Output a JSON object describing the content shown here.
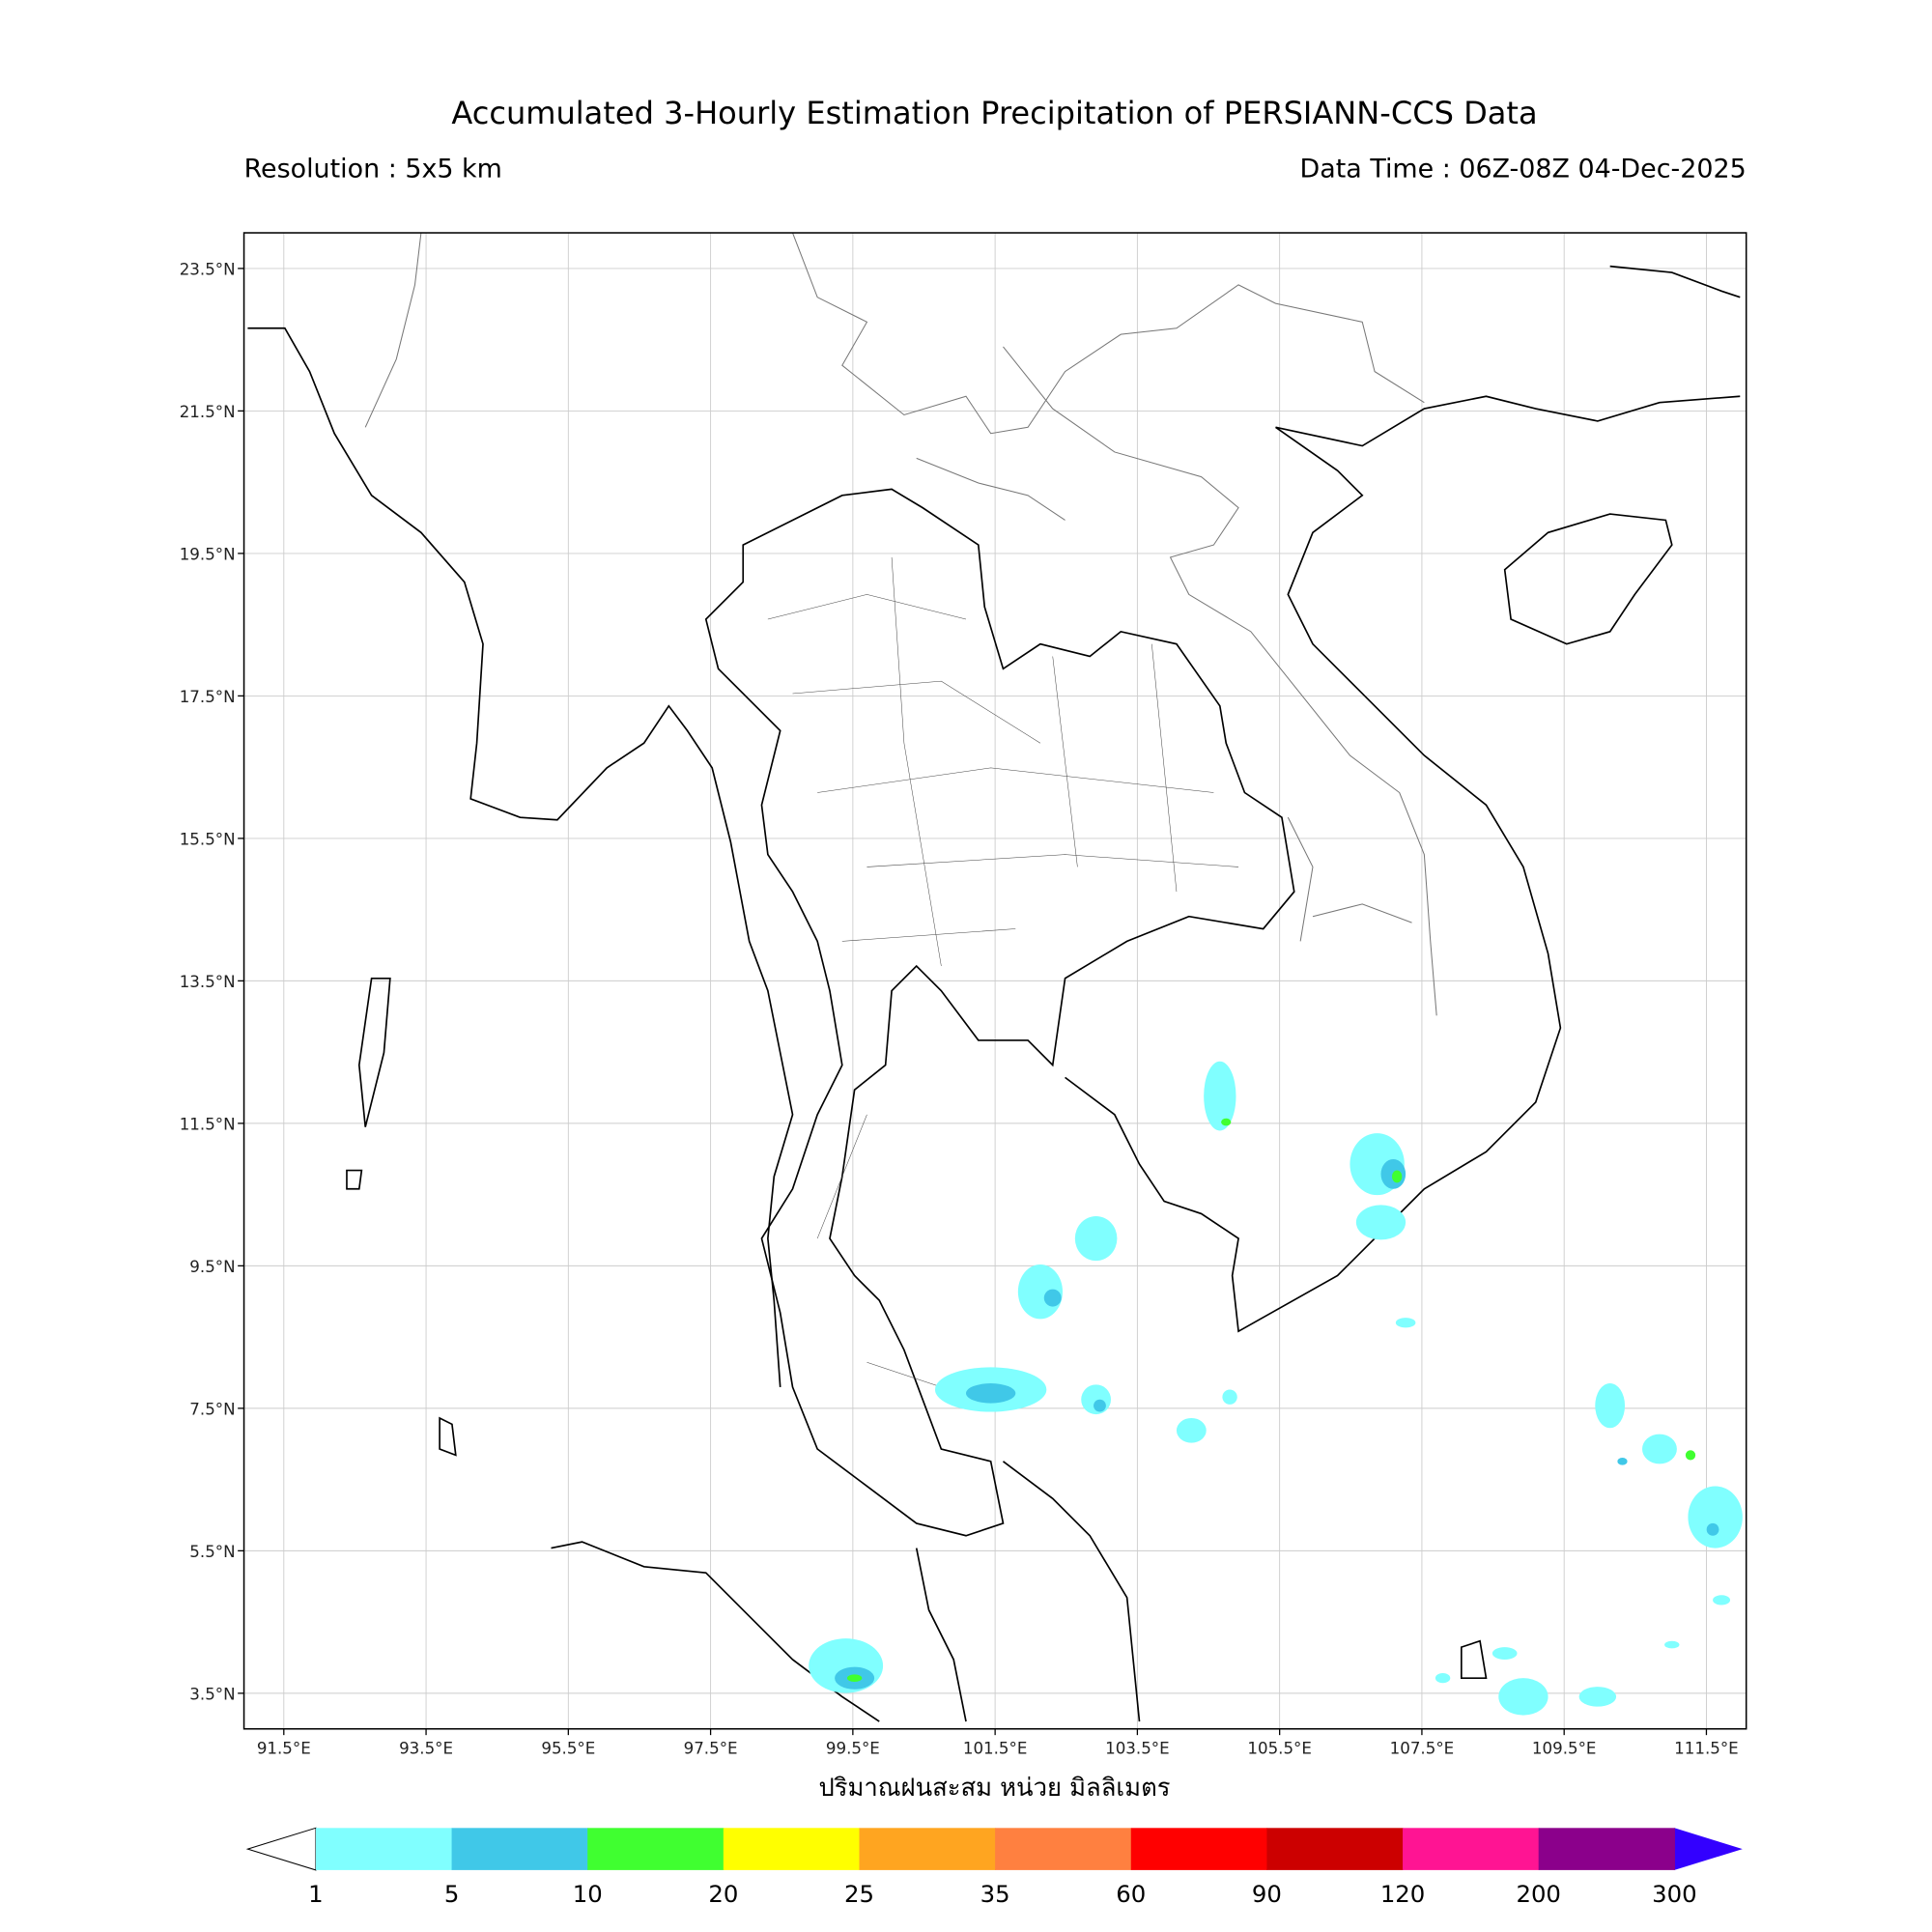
{
  "header": {
    "title": "Accumulated 3-Hourly Estimation Precipitation of PERSIANN-CCS Data",
    "resolution": "Resolution : 5x5 km",
    "data_time": "Data Time : 06Z-08Z 04-Dec-2025"
  },
  "map": {
    "xlim": [
      90.94,
      112.06
    ],
    "ylim": [
      3.0,
      24.0
    ],
    "grid": true,
    "xticks": [
      {
        "value": 91.5,
        "label": "91.5°E"
      },
      {
        "value": 93.5,
        "label": "93.5°E"
      },
      {
        "value": 95.5,
        "label": "95.5°E"
      },
      {
        "value": 97.5,
        "label": "97.5°E"
      },
      {
        "value": 99.5,
        "label": "99.5°E"
      },
      {
        "value": 101.5,
        "label": "101.5°E"
      },
      {
        "value": 103.5,
        "label": "103.5°E"
      },
      {
        "value": 105.5,
        "label": "105.5°E"
      },
      {
        "value": 107.5,
        "label": "107.5°E"
      },
      {
        "value": 109.5,
        "label": "109.5°E"
      },
      {
        "value": 111.5,
        "label": "111.5°E"
      }
    ],
    "yticks": [
      {
        "value": 3.5,
        "label": "3.5°N"
      },
      {
        "value": 5.5,
        "label": "5.5°N"
      },
      {
        "value": 7.5,
        "label": "7.5°N"
      },
      {
        "value": 9.5,
        "label": "9.5°N"
      },
      {
        "value": 11.5,
        "label": "11.5°N"
      },
      {
        "value": 13.5,
        "label": "13.5°N"
      },
      {
        "value": 15.5,
        "label": "15.5°N"
      },
      {
        "value": 17.5,
        "label": "17.5°N"
      },
      {
        "value": 19.5,
        "label": "19.5°N"
      },
      {
        "value": 21.5,
        "label": "21.5°N"
      },
      {
        "value": 23.5,
        "label": "23.5°N"
      }
    ]
  },
  "colorbar": {
    "label": "ปริมาณฝนสะสม หน่วย มิลลิเมตร",
    "levels": [
      1,
      5,
      10,
      20,
      25,
      35,
      60,
      90,
      120,
      200,
      300
    ],
    "colors": [
      "#80ffff",
      "#40c8e8",
      "#40ff30",
      "#ffff00",
      "#ffa520",
      "#ff8040",
      "#ff0000",
      "#cc0000",
      "#ff1493",
      "#8b008b"
    ],
    "under_color": "#ffffff",
    "over_color": "#3300ff"
  }
}
